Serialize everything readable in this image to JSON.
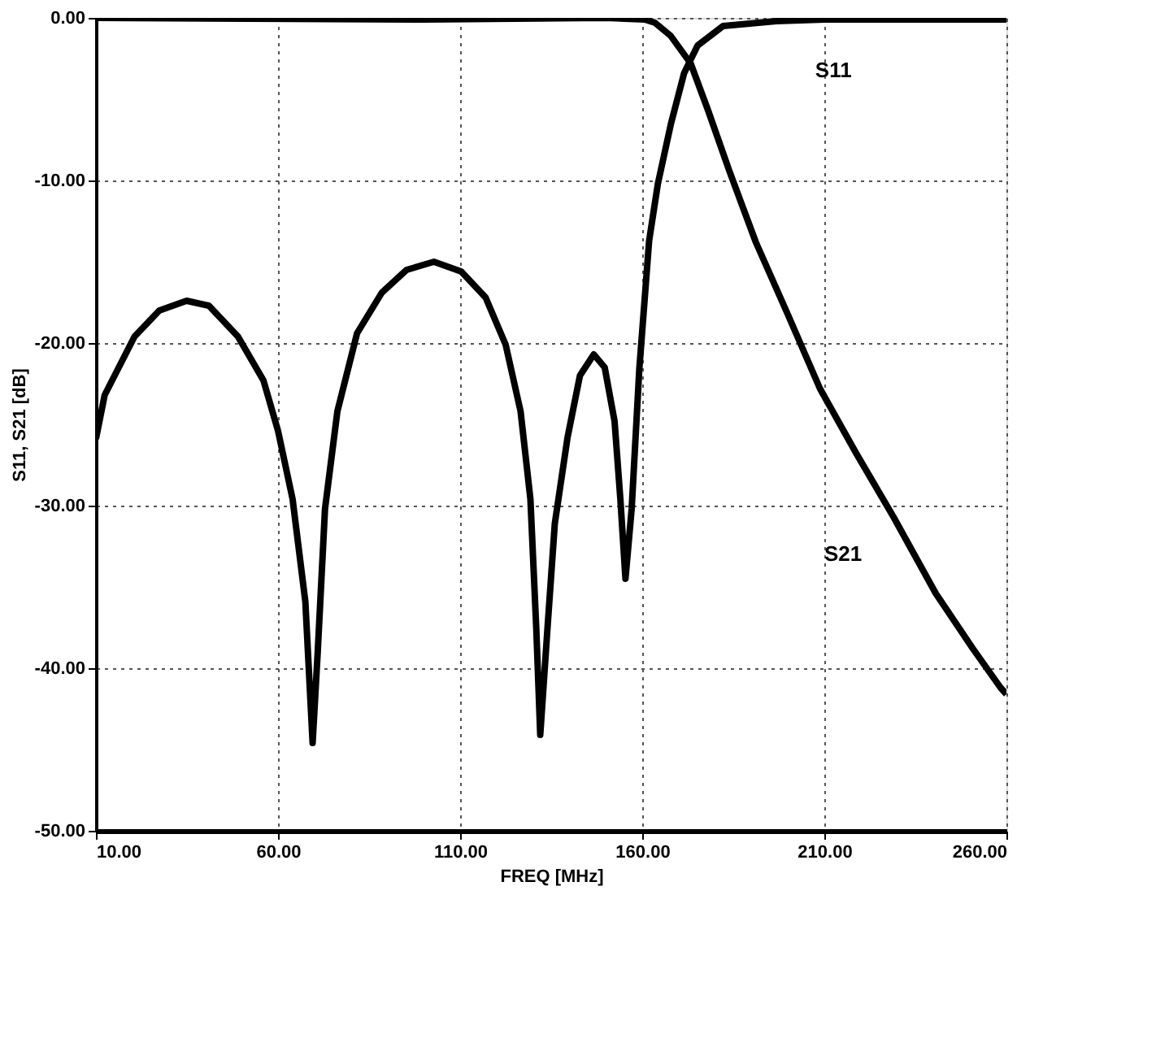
{
  "chart_data": {
    "type": "line",
    "xlabel": "FREQ [MHz]",
    "ylabel": "S11, S21 [dB]",
    "xlim": [
      10,
      260
    ],
    "ylim": [
      -50,
      0
    ],
    "xticks": [
      {
        "value": 10,
        "label": "10.00"
      },
      {
        "value": 60,
        "label": "60.00"
      },
      {
        "value": 110,
        "label": "110.00"
      },
      {
        "value": 160,
        "label": "160.00"
      },
      {
        "value": 210,
        "label": "210.00"
      },
      {
        "value": 260,
        "label": "260.00"
      }
    ],
    "yticks": [
      {
        "value": 0,
        "label": "0.00"
      },
      {
        "value": -10,
        "label": "-10.00"
      },
      {
        "value": -20,
        "label": "-20.00"
      },
      {
        "value": -30,
        "label": "-30.00"
      },
      {
        "value": -40,
        "label": "-40.00"
      },
      {
        "value": -50,
        "label": "-50.00"
      }
    ],
    "grid": true,
    "marker": "none",
    "line_style": "solid",
    "series": [
      {
        "color": "#000000",
        "x": [
          10,
          12.4,
          20.6,
          27.4,
          34.9,
          41,
          49,
          56,
          60,
          64,
          67.5,
          69.5,
          70.9,
          72.9,
          76.3,
          81.7,
          88.5,
          95.3,
          102.8,
          110.3,
          117,
          122.5,
          126.6,
          129.3,
          130.9,
          132,
          134,
          136,
          139.5,
          142.9,
          146.7,
          149.7,
          152.4,
          154,
          155.4,
          157.1,
          159.2,
          161.9,
          164.3,
          167.9,
          171.5,
          175.2,
          182.2,
          196.8,
          210,
          260
        ],
        "values": [
          -25.9,
          -23.2,
          -19.6,
          -18.0,
          -17.4,
          -17.7,
          -19.6,
          -22.3,
          -25.4,
          -29.6,
          -35.9,
          -44.6,
          -39,
          -30.2,
          -24.2,
          -19.4,
          -16.9,
          -15.5,
          -15.0,
          -15.6,
          -17.2,
          -20.1,
          -24.2,
          -29.6,
          -37.5,
          -44.1,
          -37.5,
          -31.1,
          -25.8,
          -22.0,
          -20.7,
          -21.5,
          -24.8,
          -29.6,
          -34.5,
          -30.2,
          -21.6,
          -13.7,
          -10.2,
          -6.5,
          -3.4,
          -1.7,
          -0.5,
          -0.2,
          -0.1,
          -0.1
        ]
      },
      {
        "color": "#000000",
        "x": [
          10,
          100,
          150,
          160.7,
          163.5,
          167.8,
          173.3,
          178.1,
          183.9,
          191.2,
          199.9,
          208.8,
          218.8,
          229,
          240.6,
          250.8,
          258.4,
          260
        ],
        "values": [
          0,
          -0.1,
          0,
          -0.1,
          -0.3,
          -1.1,
          -2.8,
          -5.7,
          -9.4,
          -13.8,
          -18.2,
          -22.8,
          -26.8,
          -30.7,
          -35.4,
          -38.8,
          -41.2,
          -41.6
        ]
      }
    ],
    "annotations": [
      "S11",
      "S21"
    ]
  }
}
